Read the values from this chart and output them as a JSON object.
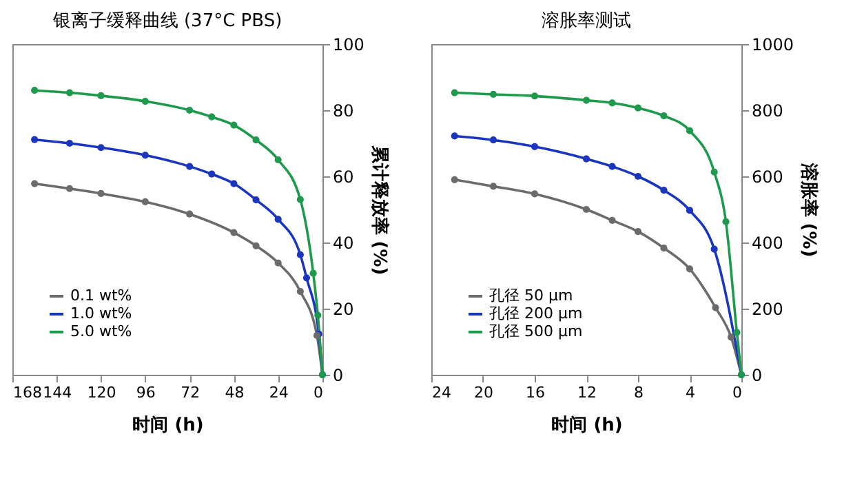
{
  "chart_data": [
    {
      "type": "line",
      "title": "银离子缓释曲线 (37°C PBS)",
      "xlabel": "时间 (h)",
      "ylabel": "累计释放率 (%)",
      "xlim": [
        168,
        0
      ],
      "xticks": [
        168,
        144,
        120,
        96,
        72,
        48,
        24,
        0
      ],
      "ylim": [
        0,
        100
      ],
      "yticks": [
        0,
        20,
        40,
        60,
        80,
        100
      ],
      "grid": false,
      "legend": "bottom left",
      "marker": "circle",
      "line_style": "solid",
      "series": [
        {
          "name": "0.1 wt%",
          "color": "#6b6b6b",
          "x": [
            0,
            3,
            12,
            24,
            36,
            48,
            72,
            96,
            120,
            137,
            156
          ],
          "values": [
            0,
            11.9,
            25.2,
            33.8,
            39,
            43,
            48.6,
            52.3,
            54.8,
            56.3,
            57.8
          ]
        },
        {
          "name": "1.0 wt%",
          "color": "#1a35c0",
          "x": [
            0,
            2,
            8.6,
            12,
            24,
            36,
            48,
            60,
            72,
            96,
            120,
            137,
            156
          ],
          "values": [
            0,
            12.3,
            29.3,
            36.3,
            47,
            52.9,
            57.8,
            60.7,
            63,
            66.4,
            68.7,
            70,
            71.1
          ]
        },
        {
          "name": "5.0 wt%",
          "color": "#1e9a4c",
          "x": [
            0,
            2.5,
            5,
            12,
            24,
            36,
            48,
            60,
            72,
            96,
            120,
            137,
            156
          ],
          "values": [
            0,
            18,
            30.7,
            53,
            65,
            71,
            75.5,
            78,
            80,
            82.7,
            84.4,
            85.3,
            86
          ]
        }
      ]
    },
    {
      "type": "line",
      "title": "溶胀率测试",
      "xlabel": "时间 (h)",
      "ylabel": "溶胀率 (%)",
      "xlim": [
        24,
        0
      ],
      "xticks": [
        24,
        20,
        16,
        12,
        8,
        4,
        0
      ],
      "ylim": [
        0,
        1000
      ],
      "yticks": [
        0,
        200,
        400,
        600,
        800,
        1000
      ],
      "grid": false,
      "legend": "bottom left",
      "marker": "circle",
      "line_style": "solid",
      "series": [
        {
          "name": "孔径 50 μm",
          "color": "#6b6b6b",
          "x": [
            0,
            0.8,
            2,
            4,
            6,
            8,
            10,
            12,
            16,
            19.2,
            22.2
          ],
          "values": [
            0,
            114,
            203,
            320,
            383,
            433,
            467,
            500,
            547,
            570,
            590
          ]
        },
        {
          "name": "孔径 200 μm",
          "color": "#1a35c0",
          "x": [
            0,
            2.1,
            4,
            6,
            8,
            10,
            12,
            16,
            19.2,
            22.2
          ],
          "values": [
            0,
            380,
            497,
            558,
            600,
            630,
            653,
            690,
            710,
            722
          ]
        },
        {
          "name": "孔径 500 μm",
          "color": "#1e9a4c",
          "x": [
            0,
            0.35,
            1.2,
            2.1,
            4,
            6,
            8,
            10,
            12,
            16,
            19.2,
            22.2
          ],
          "values": [
            0,
            128,
            463,
            613,
            738,
            783,
            807,
            822,
            830,
            843,
            848,
            853
          ]
        }
      ]
    }
  ]
}
